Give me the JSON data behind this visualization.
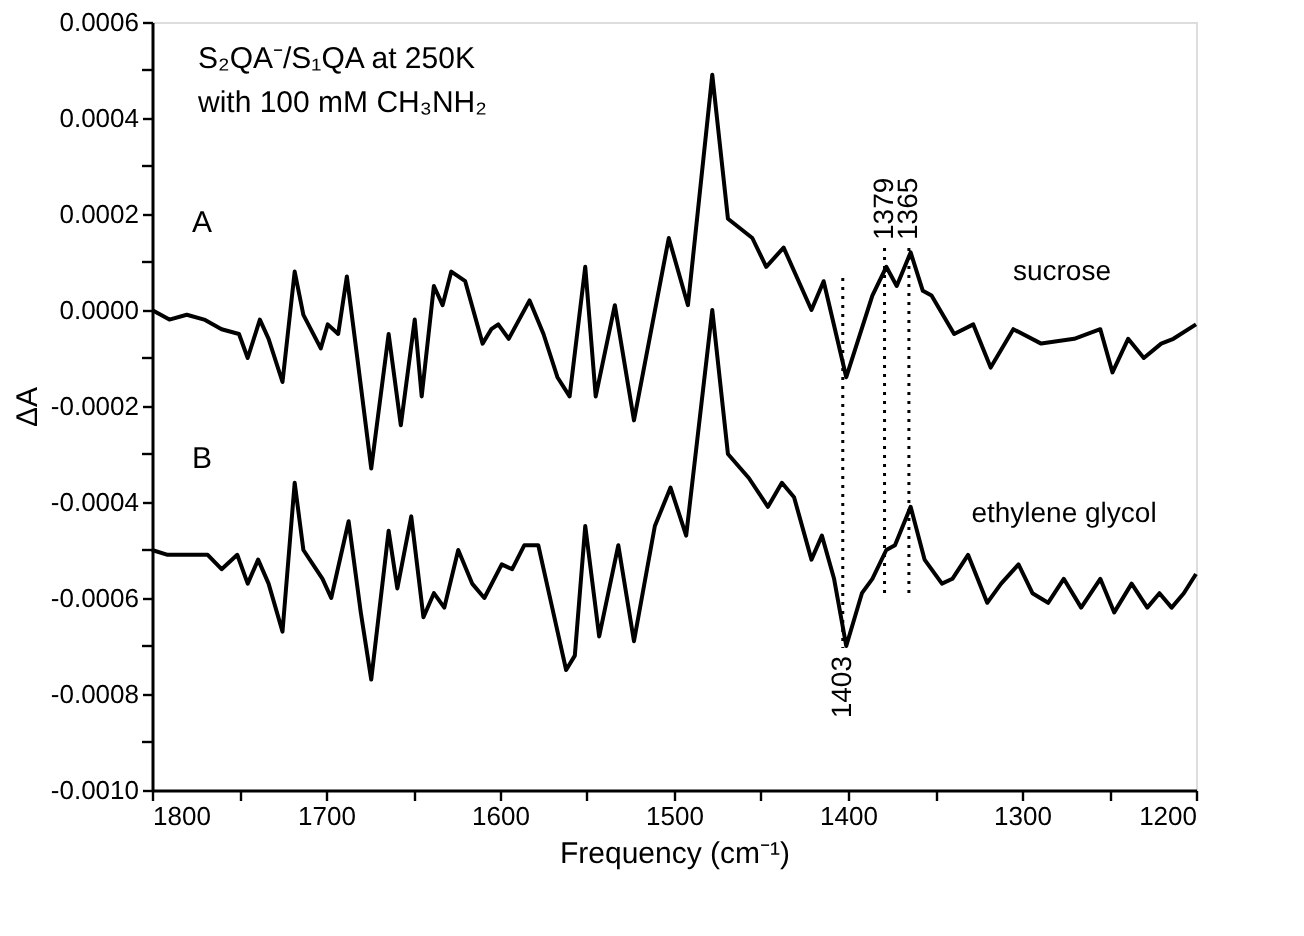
{
  "chart_data": {
    "type": "line",
    "xlabel": "Frequency (cm⁻¹)",
    "ylabel": "ΔA",
    "xlim": [
      1800,
      1200
    ],
    "xticks": [
      1800,
      {
        "value": 1750,
        "label": null
      },
      1700,
      {
        "value": 1650,
        "label": null
      },
      1600,
      {
        "value": 1550,
        "label": null
      },
      1500,
      {
        "value": 1450,
        "label": null
      },
      1400,
      {
        "value": 1350,
        "label": null
      },
      1300,
      {
        "value": 1250,
        "label": null
      },
      1200
    ],
    "ylim": [
      -0.001,
      0.0006
    ],
    "yticks": [
      {
        "value": -0.001,
        "label": "-0.0010"
      },
      {
        "value": -0.0009,
        "label": null
      },
      -0.0008,
      {
        "value": -0.0007,
        "label": null
      },
      -0.0006,
      {
        "value": -0.0005,
        "label": null
      },
      -0.0004,
      {
        "value": -0.0003,
        "label": null
      },
      -0.0002,
      {
        "value": -0.0001,
        "label": null
      },
      {
        "value": 0,
        "label": "0.0000"
      },
      {
        "value": 0.0001,
        "label": null
      },
      0.0002,
      {
        "value": 0.0003,
        "label": null
      },
      0.0004,
      {
        "value": 0.0005,
        "label": null
      },
      0.0006
    ],
    "grid": false,
    "legend": false,
    "marker": "none",
    "line_style": "solid",
    "series": [
      {
        "name": "sucrose",
        "color": "#000000",
        "x": [
          1800,
          1790,
          1780,
          1770,
          1760,
          1750,
          1745,
          1738,
          1733,
          1725,
          1718,
          1713,
          1703,
          1699,
          1693,
          1688,
          1682,
          1674,
          1664,
          1657,
          1649,
          1645,
          1638,
          1633,
          1628,
          1620,
          1610,
          1605,
          1601,
          1595,
          1583,
          1575,
          1567,
          1560,
          1551,
          1545,
          1534,
          1523,
          1503,
          1492,
          1478,
          1469,
          1455,
          1447,
          1437,
          1421,
          1414,
          1401,
          1386,
          1378,
          1372,
          1364,
          1357,
          1352,
          1339,
          1328,
          1318,
          1305,
          1289,
          1270,
          1255,
          1248,
          1239,
          1230,
          1220,
          1213,
          1200
        ],
        "values": [
          0,
          -2e-05,
          -1e-05,
          -2e-05,
          -4e-05,
          -5e-05,
          -0.0001,
          -2e-05,
          -6e-05,
          -0.00015,
          8e-05,
          -1e-05,
          -8e-05,
          -3e-05,
          -5e-05,
          7e-05,
          -0.0001,
          -0.00033,
          -5e-05,
          -0.00024,
          -2e-05,
          -0.00018,
          5e-05,
          1e-05,
          8e-05,
          6e-05,
          -7e-05,
          -4e-05,
          -3e-05,
          -6e-05,
          2e-05,
          -5e-05,
          -0.00014,
          -0.00018,
          9e-05,
          -0.00018,
          1e-05,
          -0.00023,
          0.00015,
          1e-05,
          0.00049,
          0.00019,
          0.00015,
          9e-05,
          0.00013,
          0,
          6e-05,
          -0.00014,
          3e-05,
          9e-05,
          5e-05,
          0.00012,
          4e-05,
          3e-05,
          -5e-05,
          -3e-05,
          -0.00012,
          -4e-05,
          -7e-05,
          -6e-05,
          -4e-05,
          -0.00013,
          -6e-05,
          -0.0001,
          -7e-05,
          -6e-05,
          -3e-05
        ]
      },
      {
        "name": "ethylene glycol",
        "color": "#000000",
        "x": [
          1800,
          1791,
          1768,
          1760,
          1751,
          1745,
          1739,
          1733,
          1725,
          1718,
          1713,
          1702,
          1697,
          1687,
          1680,
          1674,
          1664,
          1659,
          1651,
          1644,
          1638,
          1632,
          1624,
          1616,
          1609,
          1599,
          1593,
          1586,
          1578,
          1570,
          1562,
          1557,
          1551,
          1543,
          1532,
          1523,
          1511,
          1502,
          1493,
          1478,
          1469,
          1457,
          1446,
          1438,
          1431,
          1421,
          1415,
          1408,
          1401,
          1392,
          1386,
          1378,
          1373,
          1364,
          1356,
          1346,
          1340,
          1331,
          1320,
          1312,
          1302,
          1294,
          1285,
          1276,
          1266,
          1255,
          1247,
          1237,
          1228,
          1221,
          1214,
          1207,
          1200
        ],
        "values": [
          -0.0005,
          -0.00051,
          -0.00051,
          -0.00054,
          -0.00051,
          -0.00057,
          -0.00052,
          -0.00057,
          -0.00067,
          -0.00036,
          -0.0005,
          -0.00056,
          -0.0006,
          -0.00044,
          -0.00063,
          -0.00077,
          -0.00046,
          -0.00058,
          -0.00043,
          -0.00064,
          -0.00059,
          -0.00062,
          -0.0005,
          -0.00057,
          -0.0006,
          -0.00053,
          -0.00054,
          -0.00049,
          -0.00049,
          -0.00062,
          -0.00075,
          -0.00072,
          -0.00045,
          -0.00068,
          -0.00049,
          -0.00069,
          -0.00045,
          -0.00037,
          -0.00047,
          0,
          -0.0003,
          -0.00035,
          -0.00041,
          -0.00036,
          -0.00039,
          -0.00052,
          -0.00047,
          -0.00056,
          -0.0007,
          -0.00059,
          -0.00056,
          -0.0005,
          -0.00049,
          -0.00041,
          -0.00052,
          -0.00057,
          -0.00056,
          -0.00051,
          -0.00061,
          -0.00057,
          -0.00053,
          -0.00059,
          -0.00061,
          -0.00056,
          -0.00062,
          -0.00056,
          -0.00063,
          -0.00057,
          -0.00062,
          -0.00059,
          -0.00062,
          -0.00059,
          -0.00055
        ]
      }
    ],
    "ref_lines": [
      {
        "axis": "x",
        "value": 1403,
        "label": "1403",
        "line_style": "dotted",
        "color": "#000000"
      },
      {
        "axis": "x",
        "value": 1379,
        "label": "1379",
        "line_style": "dotted",
        "color": "#000000"
      },
      {
        "axis": "x",
        "value": 1365,
        "label": "1365",
        "line_style": "dotted",
        "color": "#000000"
      }
    ],
    "annotations": [
      "S₂QA⁻/S₁QA at 250K",
      "with 100 mM CH₃NH₂",
      "A",
      "B"
    ]
  }
}
